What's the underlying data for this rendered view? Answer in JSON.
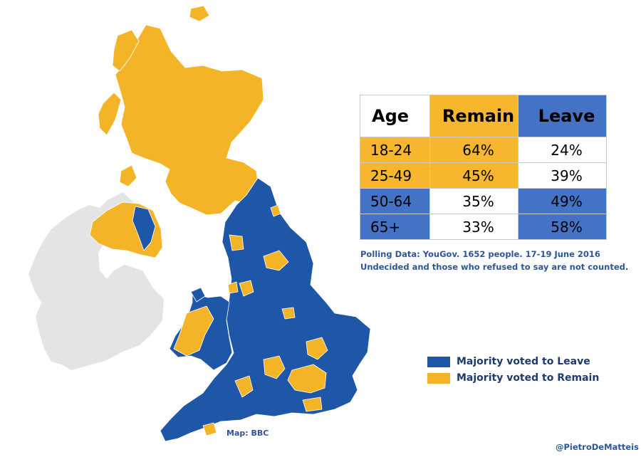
{
  "colors": {
    "leave": "#1f57a8",
    "remain": "#f4b428",
    "ireland": "#e4e4e4",
    "table_blue": "#4472c4",
    "table_orange": "#f6b72e",
    "text_blue": "#2f5597"
  },
  "table": {
    "headers": [
      "Age",
      "Remain",
      "Leave"
    ],
    "rows": [
      {
        "age": "18-24",
        "remain": "64%",
        "leave": "24%",
        "majority": "remain"
      },
      {
        "age": "25-49",
        "remain": "45%",
        "leave": "39%",
        "majority": "remain"
      },
      {
        "age": "50-64",
        "remain": "35%",
        "leave": "49%",
        "majority": "leave"
      },
      {
        "age": "65+",
        "remain": "33%",
        "leave": "58%",
        "majority": "leave"
      }
    ]
  },
  "notes": {
    "line1": "Polling Data: YouGov. 1652 people. 17-19 June 2016",
    "line2": "Undecided and those who refused to say are not counted."
  },
  "legend": {
    "leave": "Majority voted to Leave",
    "remain": "Majority voted to Remain"
  },
  "credits": {
    "map": "Map: BBC",
    "author": "@PietroDeMatteis"
  }
}
